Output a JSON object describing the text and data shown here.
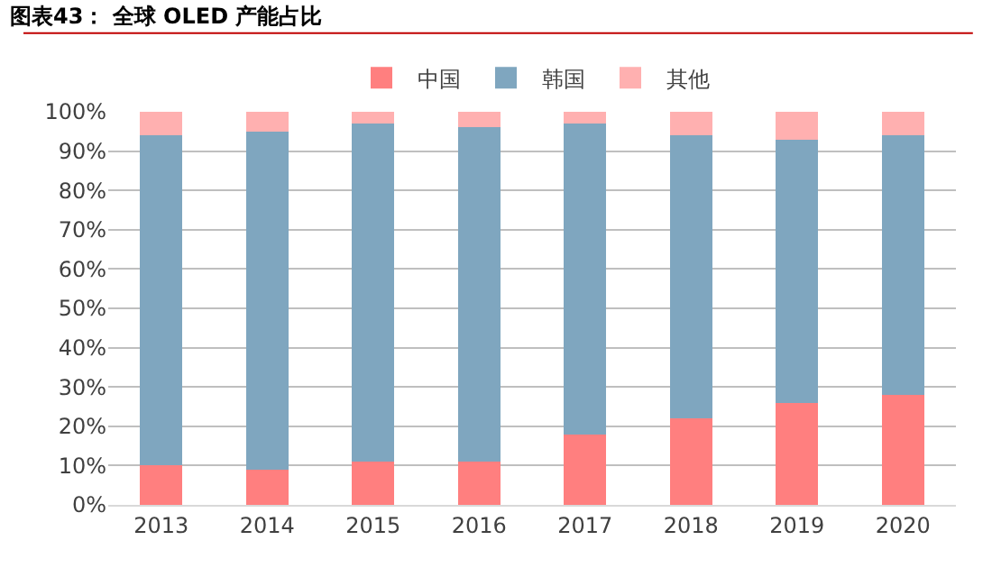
{
  "chart_data": {
    "type": "bar",
    "title": "图表43： 全球 OLED 产能占比",
    "stacked": true,
    "categories": [
      "2013",
      "2014",
      "2015",
      "2016",
      "2017",
      "2018",
      "2019",
      "2020"
    ],
    "series": [
      {
        "name": "中国",
        "color": "#ff7f7f",
        "values": [
          10,
          9,
          11,
          11,
          18,
          22,
          26,
          28
        ]
      },
      {
        "name": "韩国",
        "color": "#7fa6bf",
        "values": [
          84,
          86,
          86,
          85,
          79,
          72,
          67,
          66
        ]
      },
      {
        "name": "其他",
        "color": "#ffb0b0",
        "values": [
          6,
          5,
          3,
          4,
          3,
          6,
          7,
          6
        ]
      }
    ],
    "ylim": [
      0,
      100
    ],
    "yticks": [
      {
        "value": 0,
        "label": "0%"
      },
      {
        "value": 10,
        "label": "10%"
      },
      {
        "value": 20,
        "label": "20%"
      },
      {
        "value": 30,
        "label": "30%"
      },
      {
        "value": 40,
        "label": "40%"
      },
      {
        "value": 50,
        "label": "50%"
      },
      {
        "value": 60,
        "label": "60%"
      },
      {
        "value": 70,
        "label": "70%"
      },
      {
        "value": 80,
        "label": "80%"
      },
      {
        "value": 90,
        "label": "90%"
      },
      {
        "value": 100,
        "label": "100%"
      }
    ],
    "grid": "y",
    "legend": "top"
  }
}
